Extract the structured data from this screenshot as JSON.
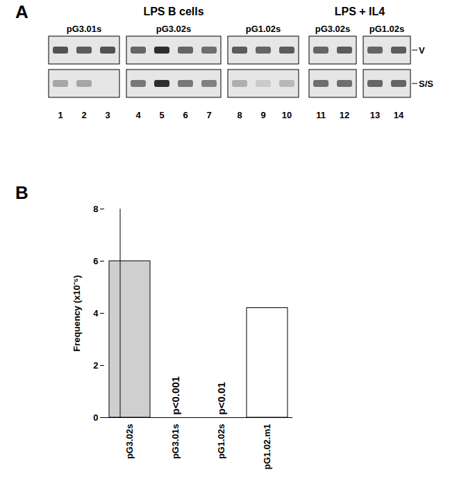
{
  "gel": {
    "panel_label": "A",
    "row_labels": [
      "V",
      "S/S"
    ],
    "sections": [
      {
        "title": "LPS B cells",
        "groups": [
          {
            "name": "pG3.01s",
            "lanes": [
              1,
              2,
              3
            ],
            "V": [
              0.8,
              0.75,
              0.8
            ],
            "S/S": [
              0.35,
              0.35,
              0
            ]
          },
          {
            "name": "pG3.02s",
            "lanes": [
              4,
              5,
              6,
              7
            ],
            "V": [
              0.7,
              1.0,
              0.7,
              0.65
            ],
            "S/S": [
              0.6,
              1.0,
              0.6,
              0.55
            ]
          },
          {
            "name": "pG1.02s",
            "lanes": [
              8,
              9,
              10
            ],
            "V": [
              0.75,
              0.7,
              0.75
            ],
            "S/S": [
              0.3,
              0.15,
              0.25
            ]
          }
        ]
      },
      {
        "title": "LPS + IL4",
        "groups": [
          {
            "name": "pG3.02s",
            "lanes": [
              11,
              12
            ],
            "V": [
              0.7,
              0.75
            ],
            "S/S": [
              0.65,
              0.65
            ]
          },
          {
            "name": "pG1.02s",
            "lanes": [
              13,
              14
            ],
            "V": [
              0.7,
              0.75
            ],
            "S/S": [
              0.7,
              0.7
            ]
          }
        ]
      }
    ]
  },
  "chart_data": {
    "type": "bar",
    "panel_label": "B",
    "categories": [
      "pG3.02s",
      "pG3.01s",
      "pG1.02s",
      "pG1.02.m1"
    ],
    "values": [
      6,
      0,
      0,
      4.2
    ],
    "colors": [
      "#cfcfcf",
      "#333333",
      "#333333",
      "#ffffff"
    ],
    "ylabel": "Frequency (x10⁻⁵)",
    "ylim": [
      0,
      8
    ],
    "yticks": [
      0,
      2,
      4,
      6,
      8
    ],
    "annotations": [
      {
        "category": "pG3.01s",
        "text": "p<0.001"
      },
      {
        "category": "pG1.02s",
        "text": "p<0.01"
      }
    ]
  }
}
